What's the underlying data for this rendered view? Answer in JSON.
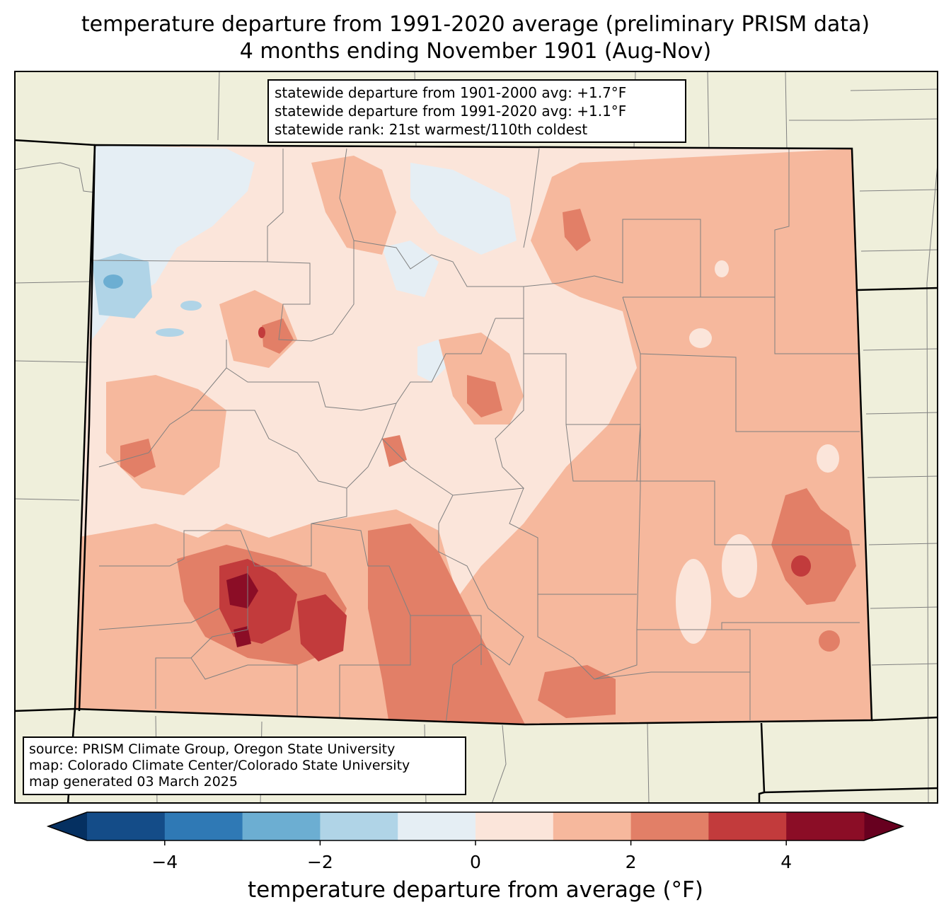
{
  "title": {
    "line1": "temperature departure from 1991-2020 average (preliminary PRISM data)",
    "line2": "4 months ending November 1901 (Aug-Nov)"
  },
  "stats": {
    "line1": "statewide departure from 1901-2000 avg: +1.7°F",
    "line2": "statewide departure from 1991-2020 avg: +1.1°F",
    "line3": "statewide rank: 21st warmest/110th coldest"
  },
  "source": {
    "line1": "source: PRISM Climate Group, Oregon State University",
    "line2": "map: Colorado Climate Center/Colorado State University",
    "line3": "map generated 03 March 2025"
  },
  "colorbar": {
    "label": "temperature departure from average (°F)",
    "ticks": [
      "−4",
      "−2",
      "0",
      "2",
      "4"
    ],
    "bounds": [
      -5,
      -4,
      -3,
      -2,
      -1,
      0,
      1,
      2,
      3,
      4,
      5
    ],
    "colors": [
      "#144c88",
      "#2f79b5",
      "#6caed2",
      "#b0d4e7",
      "#e5eef4",
      "#fbe5da",
      "#f6b89d",
      "#e27f67",
      "#c23b3c",
      "#8b0d26"
    ],
    "under_color": "#053061",
    "over_color": "#67001f"
  },
  "map_colors": {
    "land": "#efefdb",
    "county_lines": "#808080",
    "state_lines": "#000000"
  }
}
